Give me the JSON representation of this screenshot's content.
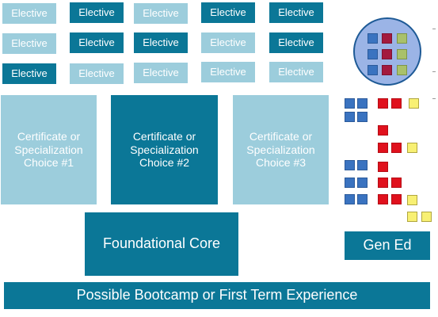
{
  "electives": {
    "row1": [
      {
        "label": "Elective",
        "style": "light"
      },
      {
        "label": "Elective",
        "style": "dark"
      },
      {
        "label": "Elective",
        "style": "light"
      },
      {
        "label": "Elective",
        "style": "dark"
      },
      {
        "label": "Elective",
        "style": "dark"
      }
    ],
    "row2": [
      {
        "label": "Elective",
        "style": "light"
      },
      {
        "label": "Elective",
        "style": "dark"
      },
      {
        "label": "Elective",
        "style": "dark"
      },
      {
        "label": "Elective",
        "style": "light"
      },
      {
        "label": "Elective",
        "style": "dark"
      }
    ],
    "row3": [
      {
        "label": "Elective",
        "style": "dark"
      },
      {
        "label": "Elective",
        "style": "light"
      },
      {
        "label": "Elective",
        "style": "light"
      },
      {
        "label": "Elective",
        "style": "light"
      },
      {
        "label": "Elective",
        "style": "light"
      }
    ]
  },
  "certificates": [
    {
      "label": "Certificate or\nSpecialization\nChoice #1",
      "style": "light"
    },
    {
      "label": "Certificate or\nSpecialization\nChoice #2",
      "style": "dark"
    },
    {
      "label": "Certificate or\nSpecialization\nChoice #3",
      "style": "light"
    }
  ],
  "foundational_core": {
    "label": "Foundational Core"
  },
  "gen_ed": {
    "label": "Gen Ed"
  },
  "bootcamp": {
    "label": "Possible Bootcamp or First Term Experience"
  },
  "colors": {
    "dark_teal": "#0b7797",
    "light_teal": "#9ccddc",
    "block_blue": "#3a73c0",
    "block_red": "#e0111d",
    "block_yellow": "#f8f073",
    "circle_fill": "#9bb4e6",
    "circle_maroon": "#a31a3e",
    "circle_green": "#a9c16a"
  }
}
